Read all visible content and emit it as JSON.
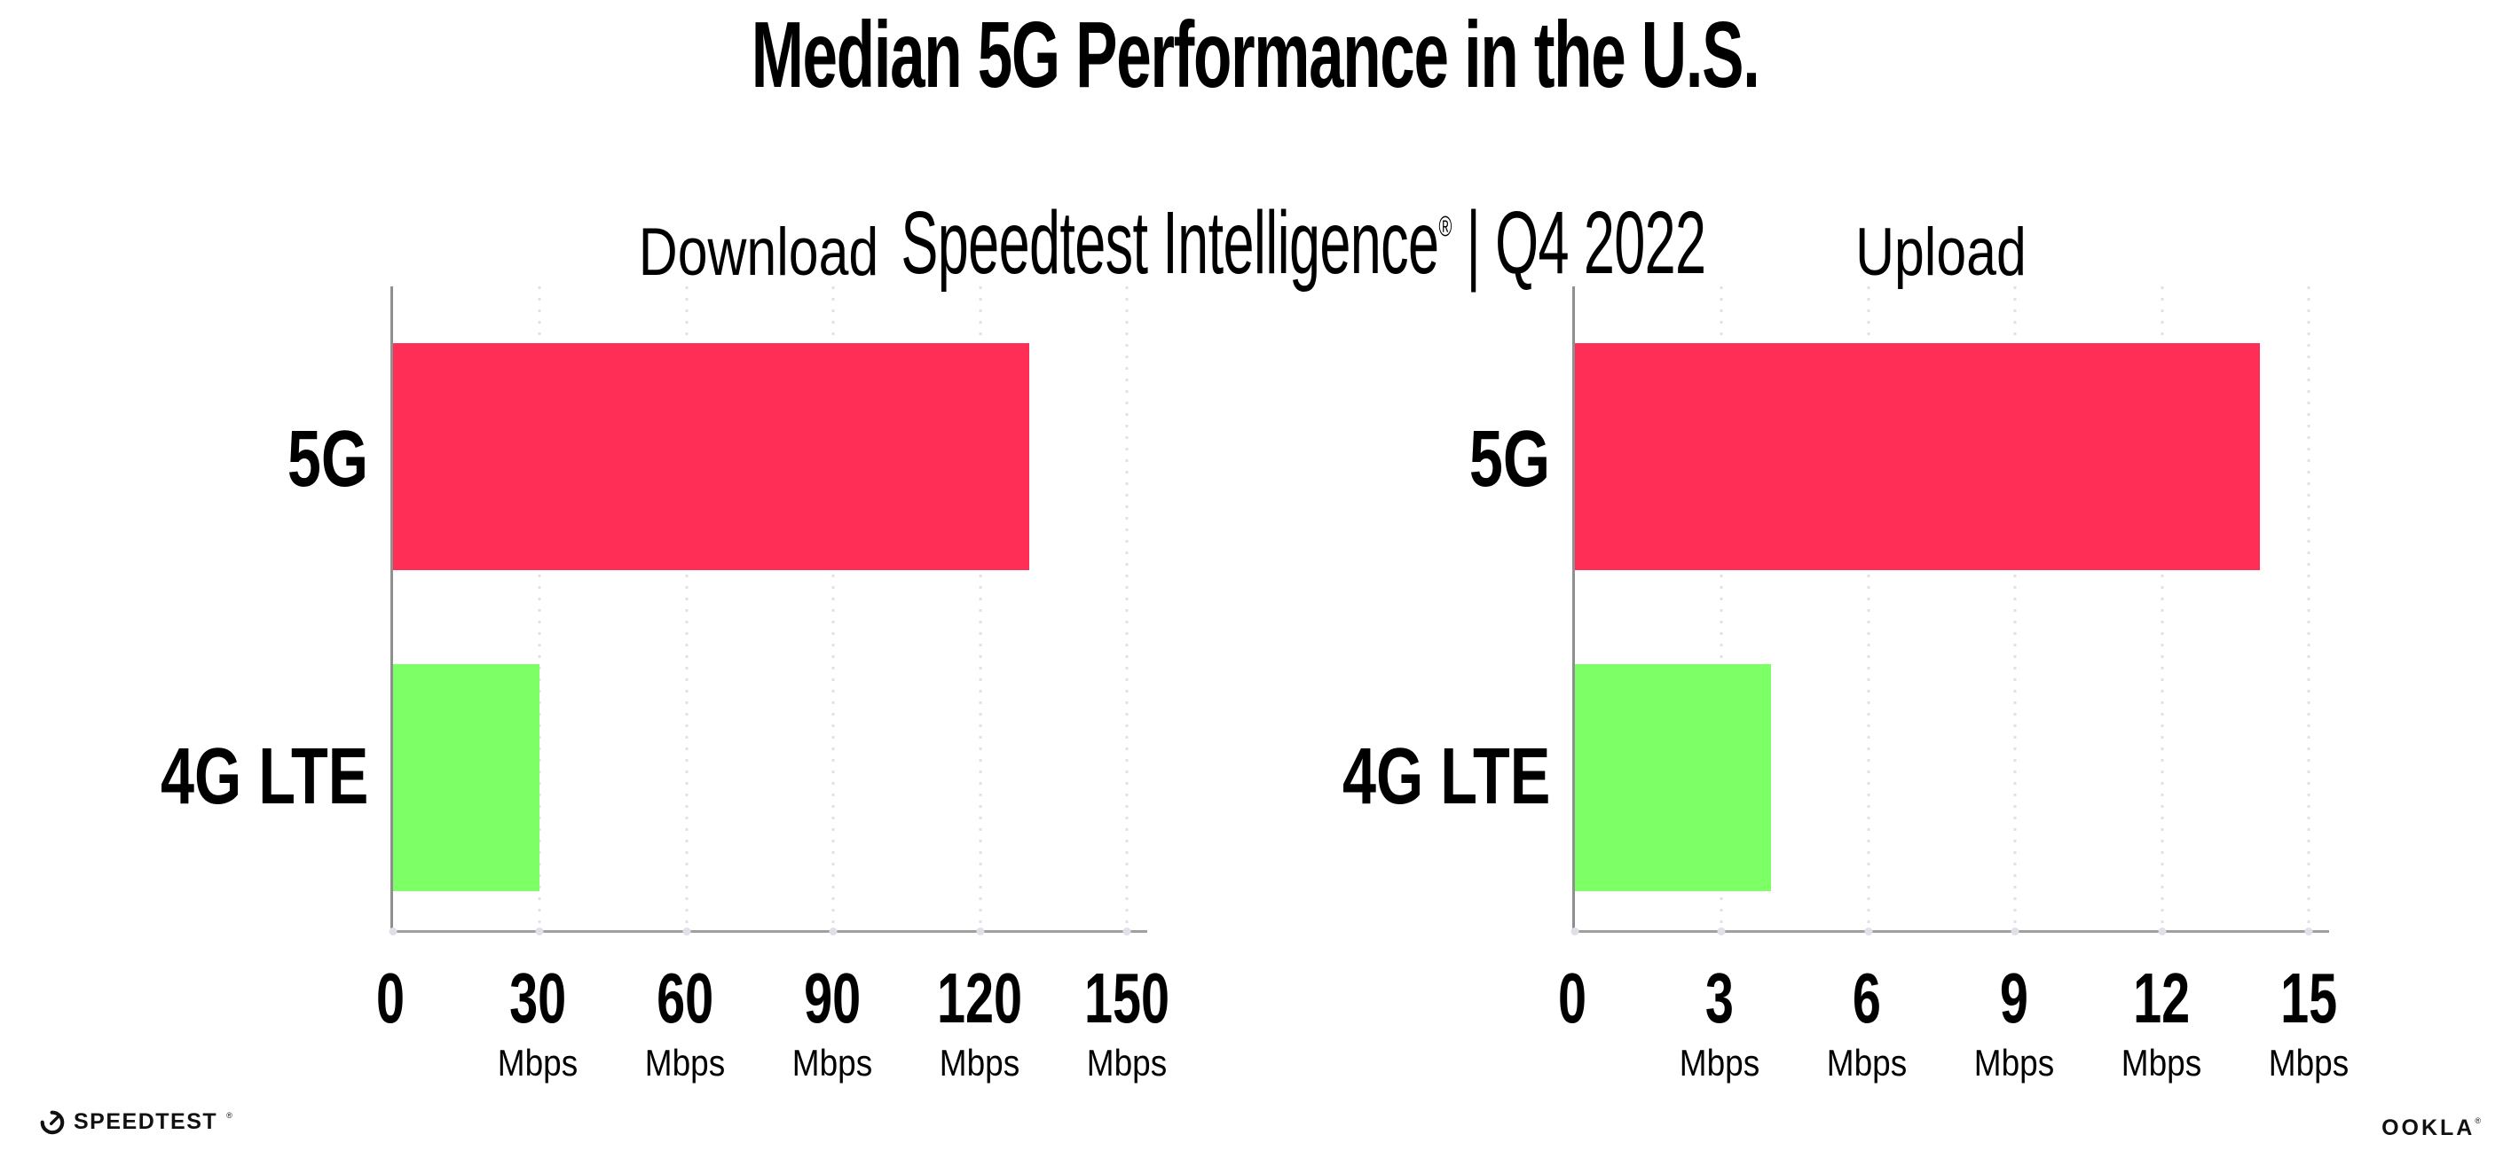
{
  "header": {
    "title": "Median 5G Performance in the U.S.",
    "subtitle": {
      "brand": "Speedtest Intelligence",
      "registered_mark": "®",
      "separator_and_period": " | Q4 2022"
    }
  },
  "chart_data": [
    {
      "type": "bar",
      "orientation": "horizontal",
      "title": "Download",
      "categories": [
        "5G",
        "4G LTE"
      ],
      "values": [
        130,
        30
      ],
      "unit": "Mbps",
      "xlabel": "",
      "ylabel": "",
      "xlim": [
        0,
        150
      ],
      "ticks": [
        0,
        30,
        60,
        90,
        120,
        150
      ],
      "bar_colors": [
        "#FF2E56",
        "#7DFF66"
      ],
      "grid": "dotted-vertical",
      "legend": "none"
    },
    {
      "type": "bar",
      "orientation": "horizontal",
      "title": "Upload",
      "categories": [
        "5G",
        "4G LTE"
      ],
      "values": [
        14,
        4
      ],
      "unit": "Mbps",
      "xlabel": "",
      "ylabel": "",
      "xlim": [
        0,
        15
      ],
      "ticks": [
        0,
        3,
        6,
        9,
        12,
        15
      ],
      "bar_colors": [
        "#FF2E56",
        "#7DFF66"
      ],
      "grid": "dotted-vertical",
      "legend": "none"
    }
  ],
  "colors": {
    "bar_5g": "#FF2E56",
    "bar_4g_lte": "#7DFF66",
    "grid_dots": "#DFE0EA",
    "axis_line": "#8F8F8F",
    "text": "#000000",
    "background": "#FFFFFF"
  },
  "footer": {
    "speedtest_wordmark": "SPEEDTEST",
    "speedtest_mark": "®",
    "ookla_wordmark": "OOKLA",
    "ookla_mark": "®"
  }
}
